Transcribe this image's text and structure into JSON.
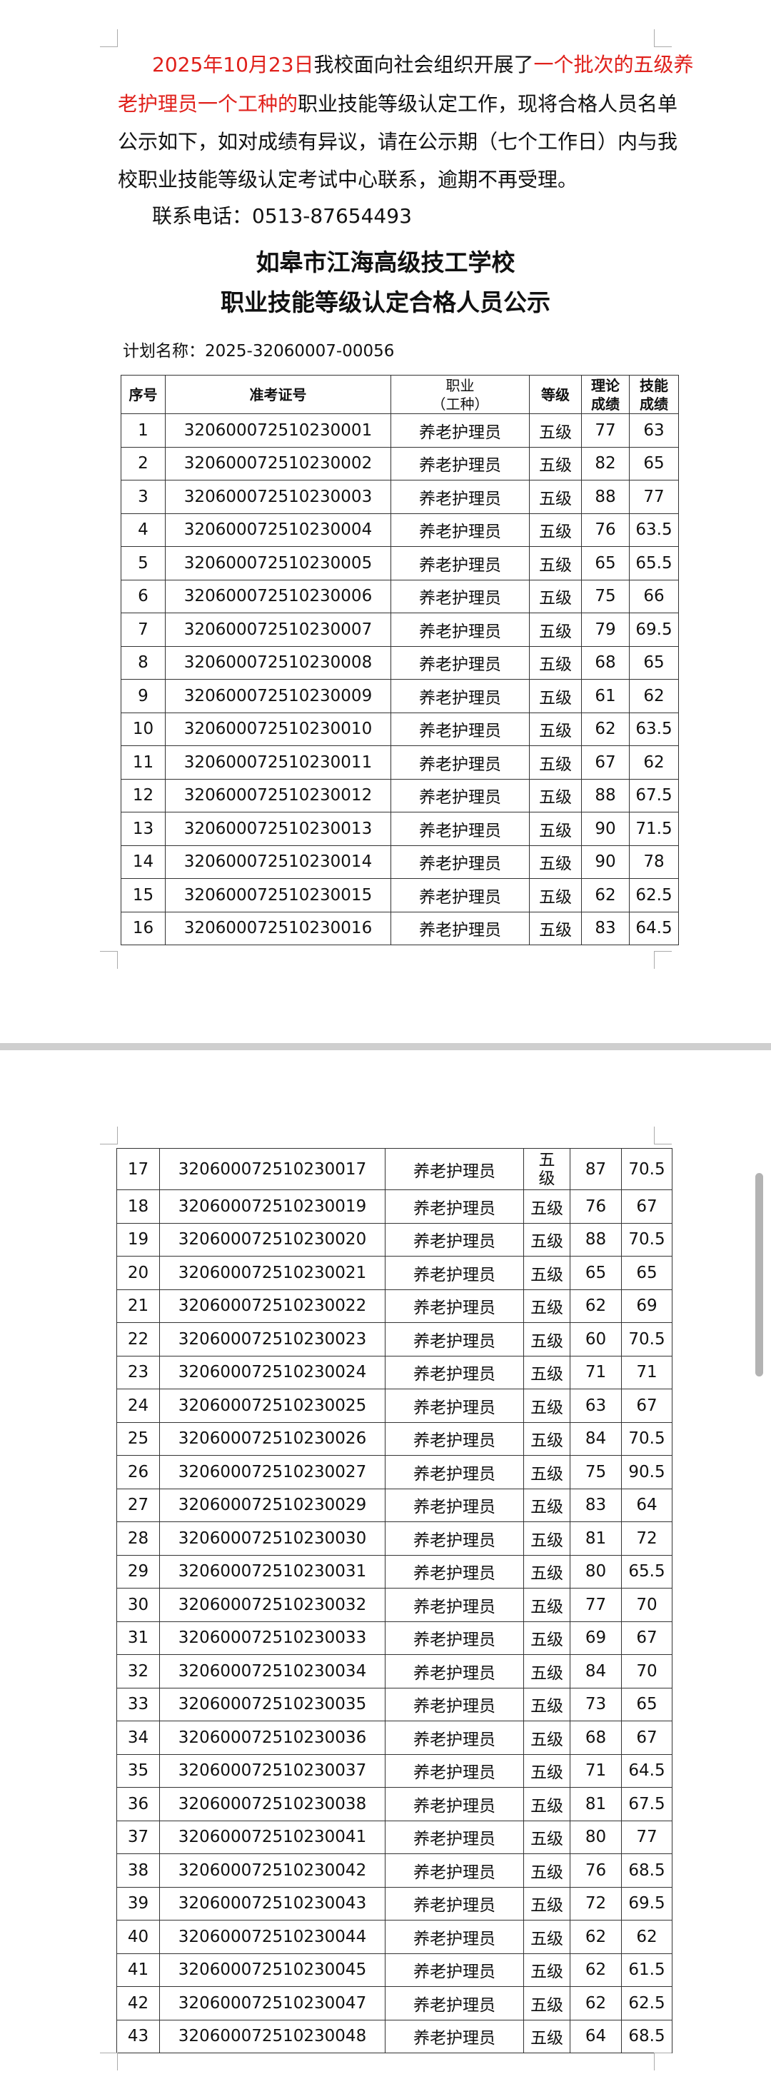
{
  "notice": {
    "line1": [
      {
        "text": "2025年10月23日",
        "red": true
      },
      {
        "text": "我校面向社会组织开展了",
        "red": false
      },
      {
        "text": "一个批次的五级养",
        "red": true
      }
    ],
    "line2": [
      {
        "text": "老护理员一个工种的",
        "red": true
      },
      {
        "text": "职业技能等级认定工作，现将合格人员名单",
        "red": false
      }
    ],
    "line3": "公示如下，如对成绩有异议，请在公示期（七个工作日）内与我",
    "line4": "校职业技能等级认定考试中心联系，逾期不再受理。",
    "contact": "联系电话：0513-87654493"
  },
  "title": {
    "school": "如皋市江海高级技工学校",
    "subtitle": "职业技能等级认定合格人员公示"
  },
  "plan_name": "计划名称：2025-32060007-00056",
  "table": {
    "headers": [
      "序号",
      "准考证号",
      "职业\n（工种）",
      "等级",
      "理论\n成绩",
      "技能\n成绩"
    ],
    "page1_rows": [
      [
        "1",
        "320600072510230001",
        "养老护理员",
        "五级",
        "77",
        "63"
      ],
      [
        "2",
        "320600072510230002",
        "养老护理员",
        "五级",
        "82",
        "65"
      ],
      [
        "3",
        "320600072510230003",
        "养老护理员",
        "五级",
        "88",
        "77"
      ],
      [
        "4",
        "320600072510230004",
        "养老护理员",
        "五级",
        "76",
        "63.5"
      ],
      [
        "5",
        "320600072510230005",
        "养老护理员",
        "五级",
        "65",
        "65.5"
      ],
      [
        "6",
        "320600072510230006",
        "养老护理员",
        "五级",
        "75",
        "66"
      ],
      [
        "7",
        "320600072510230007",
        "养老护理员",
        "五级",
        "79",
        "69.5"
      ],
      [
        "8",
        "320600072510230008",
        "养老护理员",
        "五级",
        "68",
        "65"
      ],
      [
        "9",
        "320600072510230009",
        "养老护理员",
        "五级",
        "61",
        "62"
      ],
      [
        "10",
        "320600072510230010",
        "养老护理员",
        "五级",
        "62",
        "63.5"
      ],
      [
        "11",
        "320600072510230011",
        "养老护理员",
        "五级",
        "67",
        "62"
      ],
      [
        "12",
        "320600072510230012",
        "养老护理员",
        "五级",
        "88",
        "67.5"
      ],
      [
        "13",
        "320600072510230013",
        "养老护理员",
        "五级",
        "90",
        "71.5"
      ],
      [
        "14",
        "320600072510230014",
        "养老护理员",
        "五级",
        "90",
        "78"
      ],
      [
        "15",
        "320600072510230015",
        "养老护理员",
        "五级",
        "62",
        "62.5"
      ],
      [
        "16",
        "320600072510230016",
        "养老护理员",
        "五级",
        "83",
        "64.5"
      ]
    ],
    "page2_rows": [
      [
        "17",
        "320600072510230017",
        "养老护理员",
        "五级",
        "87",
        "70.5"
      ],
      [
        "18",
        "320600072510230019",
        "养老护理员",
        "五级",
        "76",
        "67"
      ],
      [
        "19",
        "320600072510230020",
        "养老护理员",
        "五级",
        "88",
        "70.5"
      ],
      [
        "20",
        "320600072510230021",
        "养老护理员",
        "五级",
        "65",
        "65"
      ],
      [
        "21",
        "320600072510230022",
        "养老护理员",
        "五级",
        "62",
        "69"
      ],
      [
        "22",
        "320600072510230023",
        "养老护理员",
        "五级",
        "60",
        "70.5"
      ],
      [
        "23",
        "320600072510230024",
        "养老护理员",
        "五级",
        "71",
        "71"
      ],
      [
        "24",
        "320600072510230025",
        "养老护理员",
        "五级",
        "63",
        "67"
      ],
      [
        "25",
        "320600072510230026",
        "养老护理员",
        "五级",
        "84",
        "70.5"
      ],
      [
        "26",
        "320600072510230027",
        "养老护理员",
        "五级",
        "75",
        "90.5"
      ],
      [
        "27",
        "320600072510230029",
        "养老护理员",
        "五级",
        "83",
        "64"
      ],
      [
        "28",
        "320600072510230030",
        "养老护理员",
        "五级",
        "81",
        "72"
      ],
      [
        "29",
        "320600072510230031",
        "养老护理员",
        "五级",
        "80",
        "65.5"
      ],
      [
        "30",
        "320600072510230032",
        "养老护理员",
        "五级",
        "77",
        "70"
      ],
      [
        "31",
        "320600072510230033",
        "养老护理员",
        "五级",
        "69",
        "67"
      ],
      [
        "32",
        "320600072510230034",
        "养老护理员",
        "五级",
        "84",
        "70"
      ],
      [
        "33",
        "320600072510230035",
        "养老护理员",
        "五级",
        "73",
        "65"
      ],
      [
        "34",
        "320600072510230036",
        "养老护理员",
        "五级",
        "68",
        "67"
      ],
      [
        "35",
        "320600072510230037",
        "养老护理员",
        "五级",
        "71",
        "64.5"
      ],
      [
        "36",
        "320600072510230038",
        "养老护理员",
        "五级",
        "81",
        "67.5"
      ],
      [
        "37",
        "320600072510230041",
        "养老护理员",
        "五级",
        "80",
        "77"
      ],
      [
        "38",
        "320600072510230042",
        "养老护理员",
        "五级",
        "76",
        "68.5"
      ],
      [
        "39",
        "320600072510230043",
        "养老护理员",
        "五级",
        "72",
        "69.5"
      ],
      [
        "40",
        "320600072510230044",
        "养老护理员",
        "五级",
        "62",
        "62"
      ],
      [
        "41",
        "320600072510230045",
        "养老护理员",
        "五级",
        "62",
        "61.5"
      ],
      [
        "42",
        "320600072510230047",
        "养老护理员",
        "五级",
        "62",
        "62.5"
      ],
      [
        "43",
        "320600072510230048",
        "养老护理员",
        "五级",
        "64",
        "68.5"
      ]
    ]
  },
  "colors": {
    "highlight": "#e0201b",
    "page_separator": "#cfcfcf",
    "scrollbar": "#b3b3b3"
  }
}
